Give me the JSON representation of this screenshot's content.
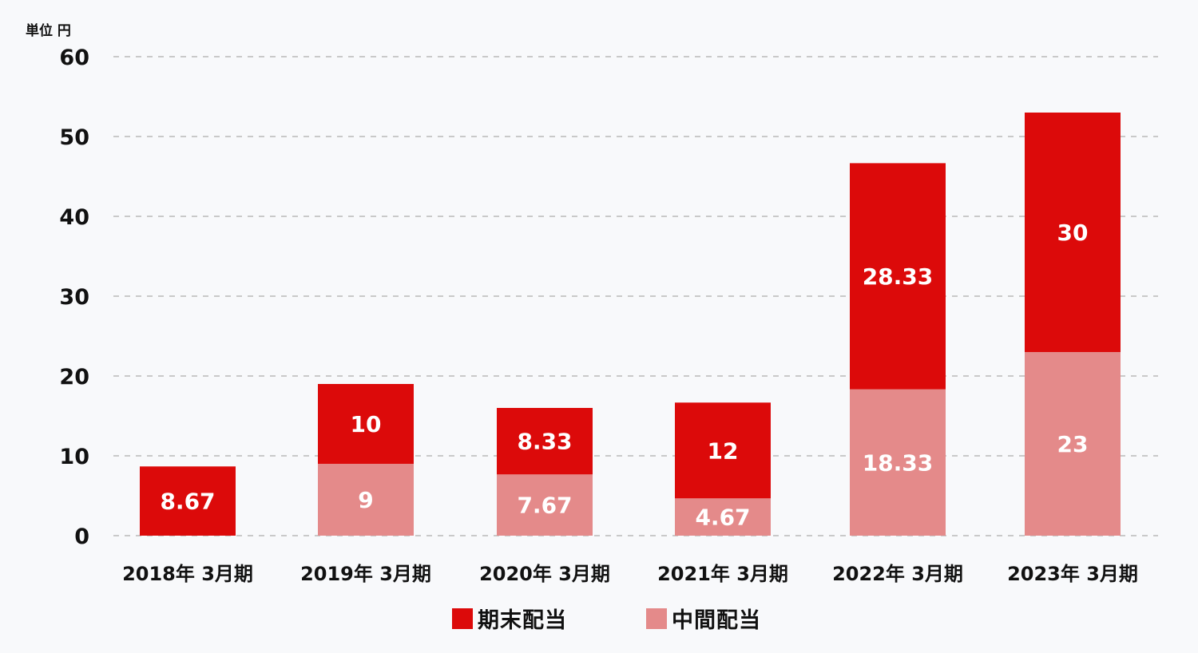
{
  "chart_data": {
    "type": "bar",
    "stacked": true,
    "unit_label": "単位 円",
    "categories": [
      "2018年 3月期",
      "2019年 3月期",
      "2020年 3月期",
      "2021年 3月期",
      "2022年 3月期",
      "2023年 3月期"
    ],
    "series": [
      {
        "name": "中間配当",
        "color": "#e48a8a",
        "values": [
          null,
          9,
          7.67,
          4.67,
          18.33,
          23
        ],
        "labels": [
          "",
          "9",
          "7.67",
          "4.67",
          "18.33",
          "23"
        ]
      },
      {
        "name": "期末配当",
        "color": "#dc0a0a",
        "values": [
          8.67,
          10,
          8.33,
          12,
          28.33,
          30
        ],
        "labels": [
          "8.67",
          "10",
          "8.33",
          "12",
          "28.33",
          "30"
        ]
      }
    ],
    "ylim": [
      0,
      60
    ],
    "yticks": [
      0,
      10,
      20,
      30,
      40,
      50,
      60
    ],
    "grid": true,
    "legend_position": "bottom-center",
    "legend": [
      {
        "name": "期末配当",
        "color": "#dc0a0a"
      },
      {
        "name": "中間配当",
        "color": "#e48a8a"
      }
    ]
  }
}
